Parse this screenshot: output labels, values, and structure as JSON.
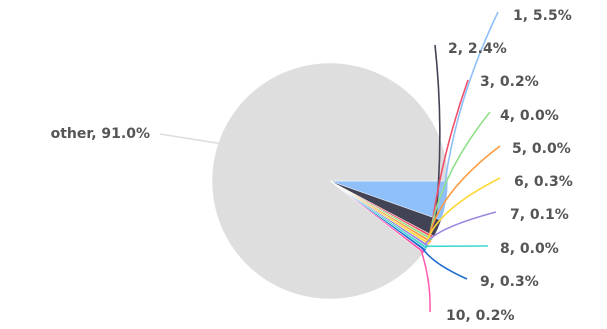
{
  "chart_data": {
    "type": "pie",
    "title": "",
    "slices": [
      {
        "label": "1",
        "value": 5.5,
        "display": "1, 5.5%",
        "color": "#90c0fa",
        "line": "#90c0fa"
      },
      {
        "label": "2",
        "value": 2.4,
        "display": "2, 2.4%",
        "color": "#434356",
        "line": "#434356"
      },
      {
        "label": "3",
        "value": 0.2,
        "display": "3, 0.2%",
        "color": "#f0506a",
        "line": "#f0506a"
      },
      {
        "label": "4",
        "value": 0.0,
        "display": "4, 0.0%",
        "color": "#90e08a",
        "line": "#90e08a"
      },
      {
        "label": "5",
        "value": 0.0,
        "display": "5, 0.0%",
        "color": "#ff9a40",
        "line": "#ff9a40"
      },
      {
        "label": "6",
        "value": 0.3,
        "display": "6, 0.3%",
        "color": "#ffd83a",
        "line": "#ffd83a"
      },
      {
        "label": "7",
        "value": 0.1,
        "display": "7, 0.1%",
        "color": "#9b86e0",
        "line": "#9b86e0"
      },
      {
        "label": "8",
        "value": 0.0,
        "display": "8, 0.0%",
        "color": "#3fd8d0",
        "line": "#3fd8d0"
      },
      {
        "label": "9",
        "value": 0.3,
        "display": "9, 0.3%",
        "color": "#1f6fd1",
        "line": "#1f6fd1"
      },
      {
        "label": "10",
        "value": 0.2,
        "display": "10, 0.2%",
        "color": "#ff5bb0",
        "line": "#ff5bb0"
      },
      {
        "label": "other",
        "value": 91.0,
        "display": "other, 91.0%",
        "color": "#dedede",
        "line": "#dedede"
      }
    ]
  }
}
